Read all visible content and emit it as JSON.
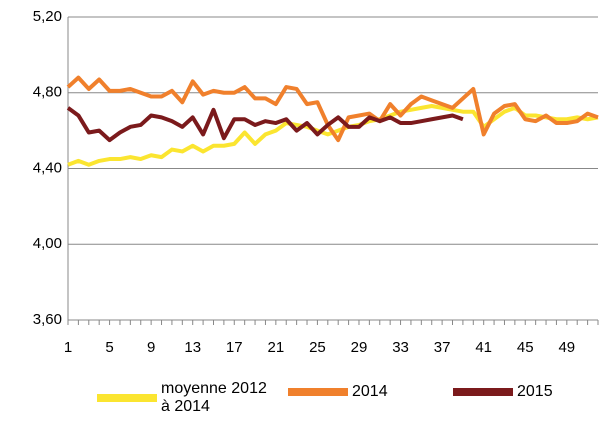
{
  "chart_data": {
    "type": "line",
    "x": [
      1,
      2,
      3,
      4,
      5,
      6,
      7,
      8,
      9,
      10,
      11,
      12,
      13,
      14,
      15,
      16,
      17,
      18,
      19,
      20,
      21,
      22,
      23,
      24,
      25,
      26,
      27,
      28,
      29,
      30,
      31,
      32,
      33,
      34,
      35,
      36,
      37,
      38,
      39,
      40,
      41,
      42,
      43,
      44,
      45,
      46,
      47,
      48,
      49,
      50,
      51,
      52
    ],
    "xlim": [
      1,
      52
    ],
    "xticks": [
      1,
      5,
      9,
      13,
      17,
      21,
      25,
      29,
      33,
      37,
      41,
      45,
      49
    ],
    "ylim": [
      3.6,
      5.2
    ],
    "yticks": [
      {
        "value": 3.6,
        "label": "3,60"
      },
      {
        "value": 4.0,
        "label": "4,00"
      },
      {
        "value": 4.4,
        "label": "4,40"
      },
      {
        "value": 4.8,
        "label": "4,80"
      },
      {
        "value": 5.2,
        "label": "5,20"
      }
    ],
    "grid": true,
    "legend": "bottom",
    "series": [
      {
        "name": "moyenne 2012 à 2014",
        "color": "#fbe530",
        "values": [
          4.42,
          4.44,
          4.42,
          4.44,
          4.45,
          4.45,
          4.46,
          4.45,
          4.47,
          4.46,
          4.5,
          4.49,
          4.52,
          4.49,
          4.52,
          4.52,
          4.53,
          4.59,
          4.53,
          4.58,
          4.6,
          4.64,
          4.63,
          4.62,
          4.6,
          4.58,
          4.6,
          4.62,
          4.63,
          4.65,
          4.66,
          4.68,
          4.7,
          4.71,
          4.72,
          4.73,
          4.72,
          4.71,
          4.7,
          4.7,
          4.62,
          4.66,
          4.7,
          4.72,
          4.68,
          4.68,
          4.67,
          4.66,
          4.66,
          4.67,
          4.66,
          4.67
        ]
      },
      {
        "name": "2014",
        "color": "#f0802c",
        "values": [
          4.83,
          4.88,
          4.82,
          4.87,
          4.81,
          4.81,
          4.82,
          4.8,
          4.78,
          4.78,
          4.81,
          4.75,
          4.86,
          4.79,
          4.81,
          4.8,
          4.8,
          4.83,
          4.77,
          4.77,
          4.74,
          4.83,
          4.82,
          4.74,
          4.75,
          4.63,
          4.55,
          4.67,
          4.68,
          4.69,
          4.65,
          4.74,
          4.68,
          4.74,
          4.78,
          4.76,
          4.74,
          4.72,
          4.77,
          4.82,
          4.58,
          4.69,
          4.73,
          4.74,
          4.66,
          4.65,
          4.68,
          4.64,
          4.64,
          4.65,
          4.69,
          4.67
        ]
      },
      {
        "name": "2015",
        "color": "#7b1a1c",
        "values": [
          4.72,
          4.68,
          4.59,
          4.6,
          4.55,
          4.59,
          4.62,
          4.63,
          4.68,
          4.67,
          4.65,
          4.62,
          4.67,
          4.58,
          4.71,
          4.56,
          4.66,
          4.66,
          4.63,
          4.65,
          4.64,
          4.66,
          4.6,
          4.64,
          4.58,
          4.63,
          4.67,
          4.62,
          4.62,
          4.67,
          4.65,
          4.67,
          4.64,
          4.64,
          4.65,
          4.66,
          4.67,
          4.68,
          4.66,
          null,
          null,
          null,
          null,
          null,
          null,
          null,
          null,
          null,
          null,
          null,
          null,
          null
        ]
      }
    ]
  }
}
